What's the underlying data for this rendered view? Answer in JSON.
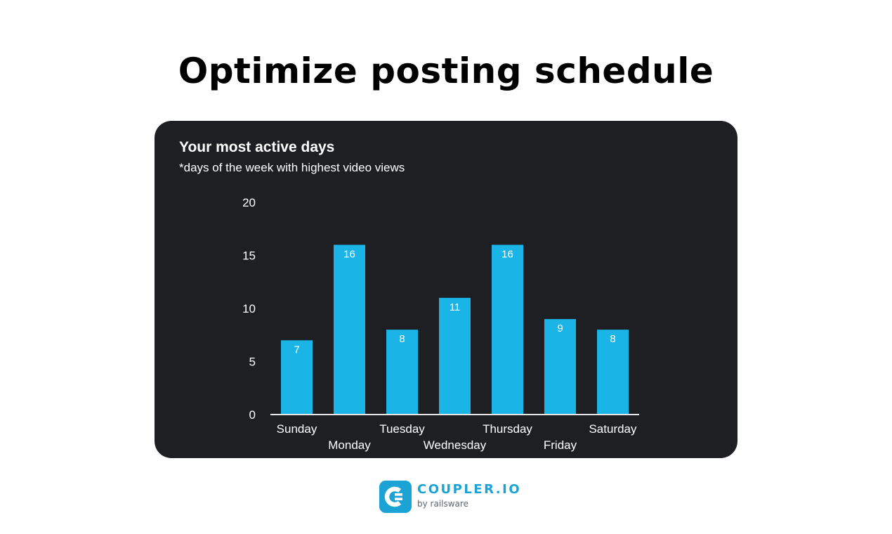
{
  "page": {
    "title": "Optimize posting schedule"
  },
  "colors": {
    "card_background": "#1e1f22",
    "bar": "#1ab4e6",
    "text_on_dark": "#ffffff",
    "brand": "#1ba3d6"
  },
  "chart_data": {
    "type": "bar",
    "title": "Your most active days",
    "subtitle": "*days of the week with highest video views",
    "categories": [
      "Sunday",
      "Monday",
      "Tuesday",
      "Wednesday",
      "Thursday",
      "Friday",
      "Saturday"
    ],
    "values": [
      7,
      16,
      8,
      11,
      16,
      9,
      8
    ],
    "ylim": [
      0,
      20
    ],
    "yticks": [
      0,
      5,
      10,
      15,
      20
    ],
    "data_labels": true,
    "grid": false,
    "legend": "none"
  },
  "branding": {
    "name": "COUPLER.IO",
    "tagline": "by railsware",
    "logo_icon": "coupler-logo-icon"
  }
}
